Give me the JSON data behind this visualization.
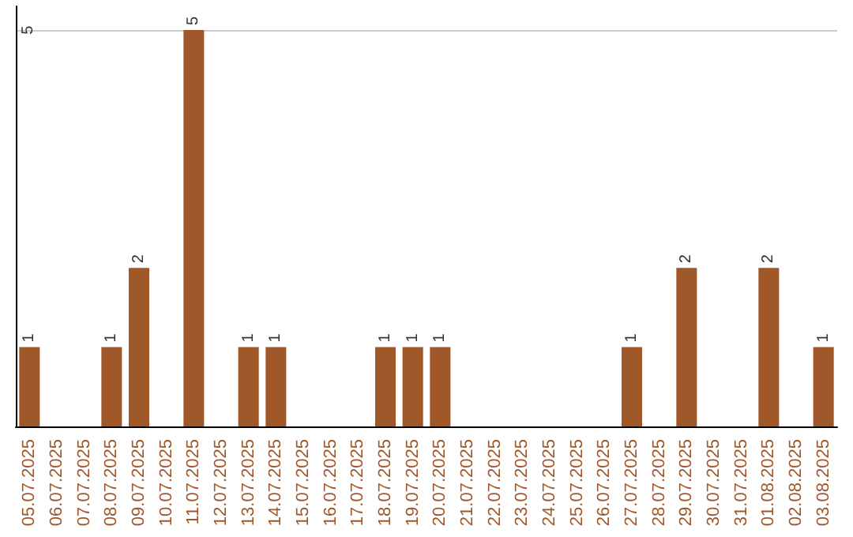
{
  "chart_data": {
    "type": "bar",
    "categories": [
      "05.07.2025",
      "06.07.2025",
      "07.07.2025",
      "08.07.2025",
      "09.07.2025",
      "10.07.2025",
      "11.07.2025",
      "12.07.2025",
      "13.07.2025",
      "14.07.2025",
      "15.07.2025",
      "16.07.2025",
      "17.07.2025",
      "18.07.2025",
      "19.07.2025",
      "20.07.2025",
      "21.07.2025",
      "22.07.2025",
      "23.07.2025",
      "24.07.2025",
      "25.07.2025",
      "26.07.2025",
      "27.07.2025",
      "28.07.2025",
      "29.07.2025",
      "30.07.2025",
      "31.07.2025",
      "01.08.2025",
      "02.08.2025",
      "03.08.2025"
    ],
    "values": [
      1,
      0,
      0,
      1,
      2,
      0,
      5,
      0,
      1,
      1,
      0,
      0,
      0,
      1,
      1,
      1,
      0,
      0,
      0,
      0,
      0,
      0,
      1,
      0,
      2,
      0,
      0,
      2,
      0,
      1
    ],
    "value_labels": [
      "1",
      null,
      null,
      "1",
      "2",
      null,
      "5",
      null,
      "1",
      "1",
      null,
      null,
      null,
      "1",
      "1",
      "1",
      null,
      null,
      null,
      null,
      null,
      null,
      "1",
      null,
      "2",
      null,
      null,
      "2",
      null,
      "1"
    ],
    "color": "#a0572a",
    "ylim": [
      0,
      5.3
    ],
    "yticks": [
      {
        "value": 0,
        "label": null
      },
      5
    ],
    "grid": "y"
  }
}
